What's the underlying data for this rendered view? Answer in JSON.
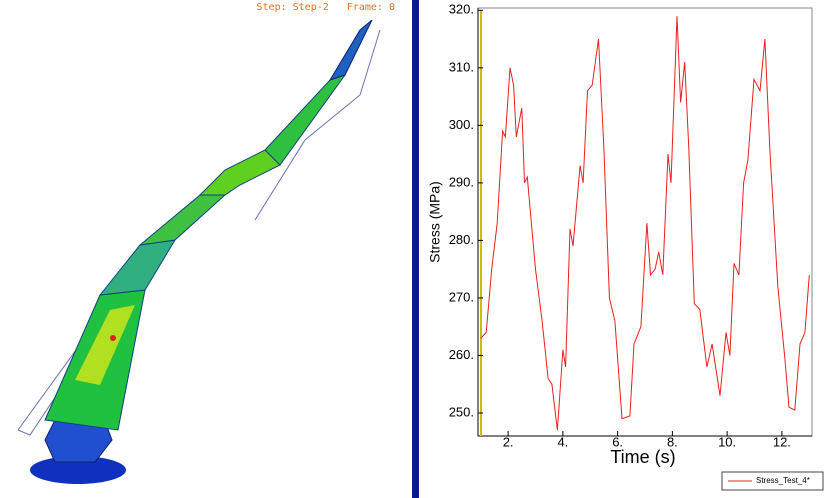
{
  "viewport": {
    "status": "Step: Step-2   Frame: 0"
  },
  "chart_data": {
    "type": "line",
    "xlabel": "Time (s)",
    "ylabel": "Stress (MPa)",
    "x": [
      1.0,
      1.2,
      1.4,
      1.6,
      1.8,
      1.9,
      2.07,
      2.2,
      2.3,
      2.5,
      2.6,
      2.7,
      3.0,
      3.24,
      3.46,
      3.6,
      3.8,
      4.0,
      4.1,
      4.26,
      4.37,
      4.63,
      4.74,
      4.9,
      5.07,
      5.3,
      5.5,
      5.7,
      5.9,
      6.16,
      6.45,
      6.6,
      6.85,
      7.07,
      7.2,
      7.37,
      7.5,
      7.65,
      7.84,
      7.95,
      8.17,
      8.3,
      8.45,
      8.6,
      8.8,
      9.0,
      9.26,
      9.45,
      9.74,
      9.96,
      10.1,
      10.25,
      10.43,
      10.6,
      10.76,
      10.98,
      11.2,
      11.38,
      11.56,
      11.85,
      12.1,
      12.26,
      12.47,
      12.66,
      12.84,
      13.0
    ],
    "series": [
      {
        "name": "Stress_Test_4*",
        "color": "#e8201c",
        "values": [
          263,
          264,
          275,
          283,
          299,
          298,
          310,
          307,
          298,
          303,
          290,
          291,
          275,
          266,
          256,
          255,
          247,
          261,
          258,
          282,
          279,
          293,
          290,
          306,
          307,
          315,
          296,
          270,
          266,
          249,
          249.5,
          262,
          265,
          283,
          274,
          275,
          278,
          274,
          295,
          290,
          319,
          304,
          311,
          296,
          269,
          268,
          258,
          262,
          253,
          264,
          260,
          276,
          274,
          290,
          294,
          308,
          306,
          315,
          296,
          272,
          260,
          251,
          250.5,
          262,
          264,
          274
        ]
      }
    ],
    "xlim": [
      0.9,
      13.1
    ],
    "ylim": [
      246,
      320.4
    ],
    "xticks": [
      {
        "value": 2,
        "label": "2."
      },
      {
        "value": 4,
        "label": "4."
      },
      {
        "value": 6,
        "label": "6."
      },
      {
        "value": 8,
        "label": "8."
      },
      {
        "value": 10,
        "label": "10."
      },
      {
        "value": 12,
        "label": "12."
      }
    ],
    "yticks": [
      {
        "value": 250,
        "label": "250."
      },
      {
        "value": 260,
        "label": "260."
      },
      {
        "value": 270,
        "label": "270."
      },
      {
        "value": 280,
        "label": "280."
      },
      {
        "value": 290,
        "label": "290."
      },
      {
        "value": 300,
        "label": "300."
      },
      {
        "value": 310,
        "label": "310."
      },
      {
        "value": 320,
        "label": "320."
      }
    ]
  }
}
